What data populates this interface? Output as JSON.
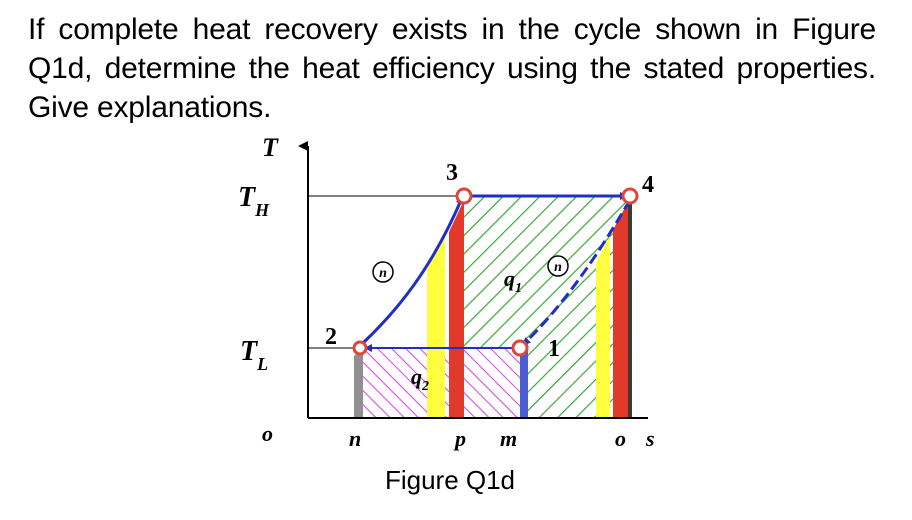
{
  "question": {
    "text": "If complete heat recovery exists in the cycle shown in Figure Q1d, determine the heat efficiency using the stated properties. Give explanations."
  },
  "diagram": {
    "axes": {
      "y_label": "T",
      "x_label": "s",
      "origin_label": "o"
    },
    "temperatures": {
      "high": "T",
      "high_sub": "H",
      "low": "T",
      "low_sub": "L"
    },
    "states": {
      "p1": "1",
      "p2": "2",
      "p3": "3",
      "p4": "4"
    },
    "s_ticks": {
      "n": "n",
      "p": "p",
      "m": "m",
      "o": "o"
    },
    "heat_labels": {
      "q1": "q",
      "q1_sub": "1",
      "q2": "q",
      "q2_sub": "2"
    },
    "polytropic_marks": [
      "n",
      "n"
    ],
    "caption": "Figure Q1d",
    "colors": {
      "cycle_line": "#1f2fc4",
      "state_marker": "#e0453a",
      "hatch_green": "#3aa83a",
      "hatch_magenta": "#e040e0",
      "strip_yellow": "#ffff40",
      "strip_red": "#e23a2a",
      "strip_gray": "#909090",
      "strip_blue": "#4a5ed0"
    }
  }
}
